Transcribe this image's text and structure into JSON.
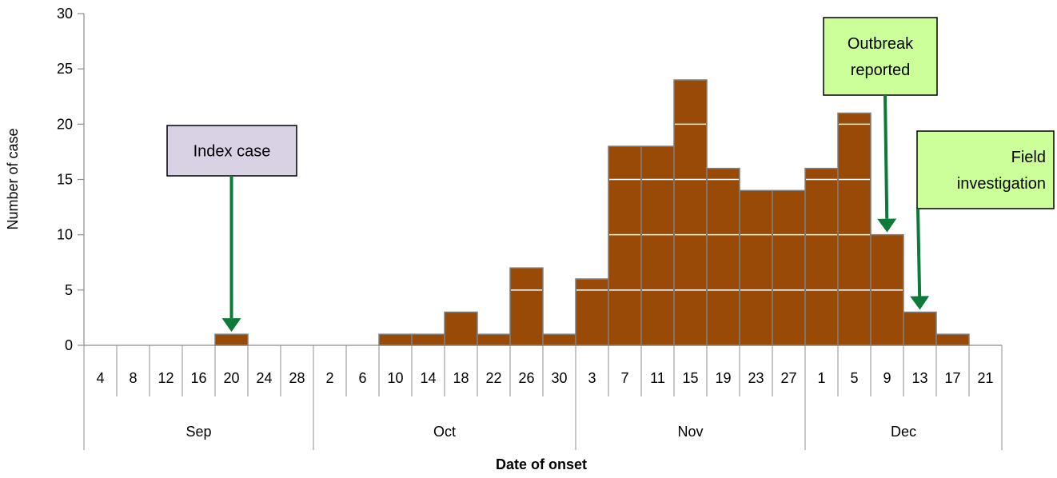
{
  "chart_data": {
    "type": "bar",
    "title": "",
    "xlabel": "Date of onset",
    "ylabel": "Number of case",
    "ylim": [
      0,
      30
    ],
    "yticks": [
      0,
      5,
      10,
      15,
      20,
      25,
      30
    ],
    "categories": [
      "4",
      "8",
      "12",
      "16",
      "20",
      "24",
      "28",
      "2",
      "6",
      "10",
      "14",
      "18",
      "22",
      "26",
      "30",
      "3",
      "7",
      "11",
      "15",
      "19",
      "23",
      "27",
      "1",
      "5",
      "9",
      "13",
      "17",
      "21"
    ],
    "values": [
      0,
      0,
      0,
      0,
      1,
      0,
      0,
      0,
      0,
      1,
      1,
      3,
      1,
      7,
      1,
      6,
      18,
      18,
      24,
      16,
      14,
      14,
      16,
      21,
      10,
      3,
      1,
      0
    ],
    "months": [
      {
        "label": "Sep",
        "start": 0,
        "end": 7
      },
      {
        "label": "Oct",
        "start": 7,
        "end": 15
      },
      {
        "label": "Nov",
        "start": 15,
        "end": 22
      },
      {
        "label": "Dec",
        "start": 22,
        "end": 28
      }
    ],
    "bar_color": "#994a07",
    "grid": false,
    "annotations": [
      {
        "name": "index-case",
        "lines": [
          "Index case"
        ],
        "target_index": 4,
        "fill": "#d9d1e4"
      },
      {
        "name": "outbreak-reported",
        "lines": [
          "Outbreak",
          "reported"
        ],
        "target_index": 24,
        "fill": "#ccff99"
      },
      {
        "name": "field-investigation",
        "lines": [
          "Field",
          "investigation"
        ],
        "target_index": 25,
        "fill": "#ccff99"
      }
    ],
    "arrow_color": "#0e7a38"
  }
}
